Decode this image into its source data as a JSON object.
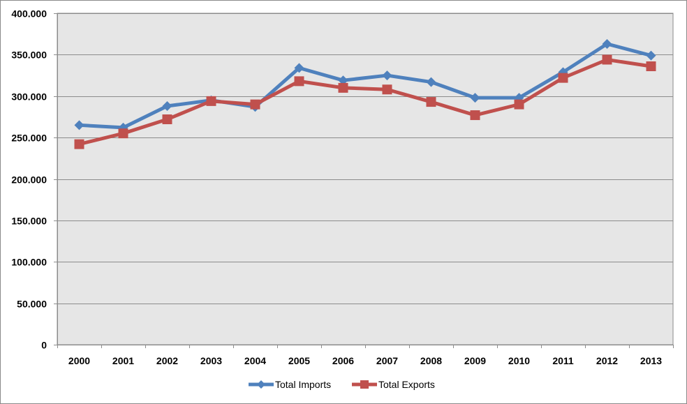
{
  "chart_data": {
    "type": "line",
    "title": "",
    "xlabel": "",
    "ylabel": "",
    "categories": [
      "2000",
      "2001",
      "2002",
      "2003",
      "2004",
      "2005",
      "2006",
      "2007",
      "2008",
      "2009",
      "2010",
      "2011",
      "2012",
      "2013"
    ],
    "ylim": [
      0,
      400
    ],
    "yticks": [
      0,
      50,
      100,
      150,
      200,
      250,
      300,
      350,
      400
    ],
    "ytick_labels": [
      "0",
      "50.000",
      "100.000",
      "150.000",
      "200.000",
      "250.000",
      "300.000",
      "350.000",
      "400.000"
    ],
    "grid": true,
    "legend_position": "bottom",
    "plot_background": "#e6e6e6",
    "series": [
      {
        "name": "Total Imports",
        "color": "#4f81bd",
        "marker": "diamond",
        "values": [
          265,
          262,
          288,
          295,
          287,
          334,
          319,
          325,
          317,
          298,
          298,
          329,
          363,
          349
        ]
      },
      {
        "name": "Total Exports",
        "color": "#c0504d",
        "marker": "square",
        "values": [
          242,
          255,
          272,
          294,
          290,
          318,
          310,
          308,
          293,
          277,
          290,
          322,
          344,
          336
        ]
      }
    ]
  }
}
